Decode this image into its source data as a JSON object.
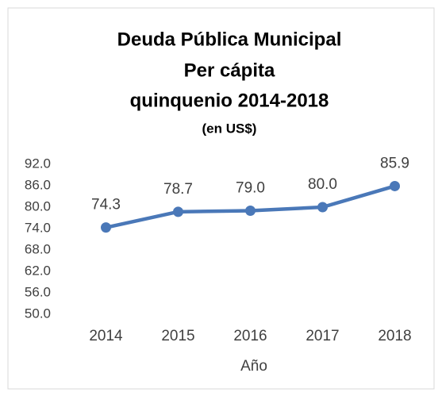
{
  "chart_data": {
    "type": "line",
    "title": [
      "Deuda Pública Municipal",
      "Per cápita",
      "quinquenio 2014-2018"
    ],
    "subtitle": "(en US$)",
    "x_label": "Año",
    "categories": [
      "2014",
      "2015",
      "2016",
      "2017",
      "2018"
    ],
    "values": [
      74.3,
      78.7,
      79.0,
      80.0,
      85.9
    ],
    "value_labels": [
      "74.3",
      "78.7",
      "79.0",
      "80.0",
      "85.9"
    ],
    "color": "#4a78b8",
    "ylim": [
      50,
      92
    ],
    "yticks": [
      {
        "value": 50,
        "label": "50.0"
      },
      {
        "value": 56,
        "label": "56.0"
      },
      {
        "value": 62,
        "label": "62.0"
      },
      {
        "value": 68,
        "label": "68.0"
      },
      {
        "value": 74,
        "label": "74.0"
      },
      {
        "value": 80,
        "label": "80.0"
      },
      {
        "value": 86,
        "label": "86.0"
      },
      {
        "value": 92,
        "label": "92.0"
      }
    ],
    "grid": false
  }
}
